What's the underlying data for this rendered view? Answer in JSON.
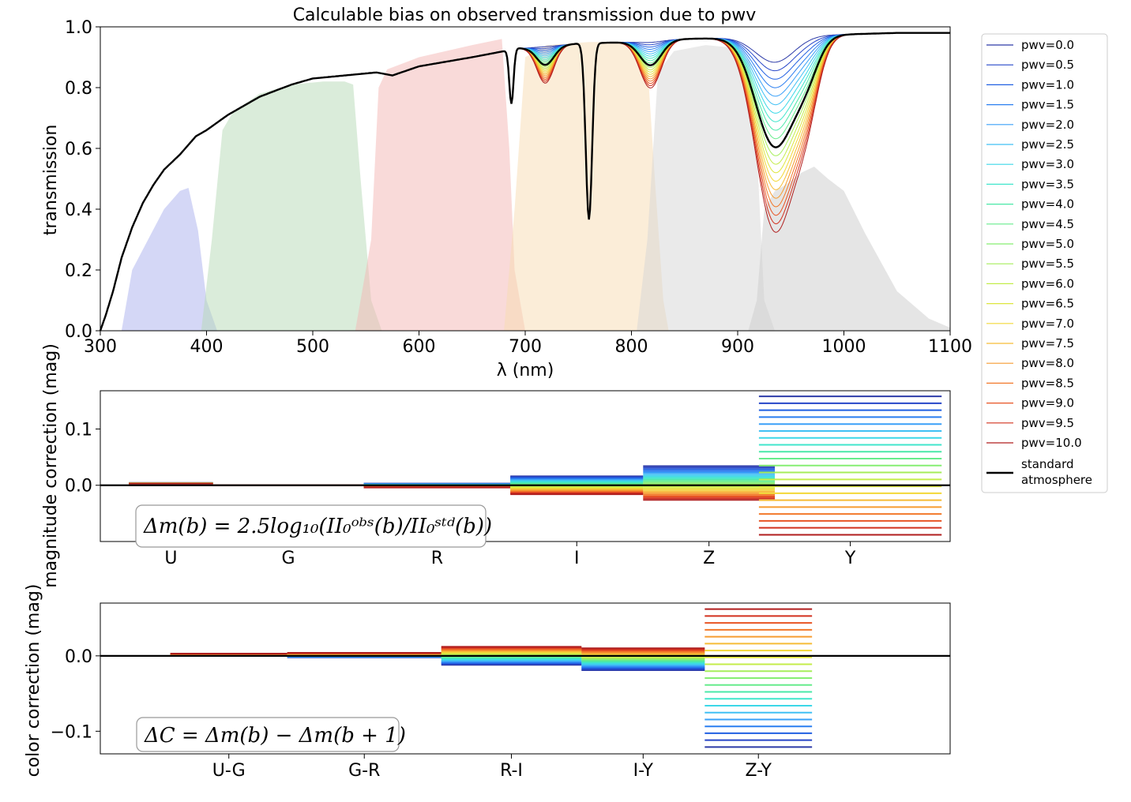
{
  "chart_data": [
    {
      "type": "line",
      "title": "Calculable bias on observed transmission due to pwv",
      "xlabel": "λ (nm)",
      "ylabel": "transmission",
      "xlim": [
        300,
        1100
      ],
      "ylim": [
        0.0,
        1.0
      ],
      "xticks": [
        "300",
        "400",
        "500",
        "600",
        "700",
        "800",
        "900",
        "1000",
        "1100"
      ],
      "yticks": [
        "0.0",
        "0.2",
        "0.4",
        "0.6",
        "0.8",
        "1.0"
      ],
      "grid": false,
      "legend_placement": "outside-right",
      "filters": [
        {
          "name": "U",
          "color": "#aab0ee",
          "x": [
            320,
            330,
            345,
            360,
            375,
            383,
            392,
            400,
            410
          ],
          "y": [
            0.0,
            0.2,
            0.3,
            0.4,
            0.46,
            0.47,
            0.33,
            0.1,
            0.0
          ]
        },
        {
          "name": "G",
          "color": "#b5d9b5",
          "x": [
            395,
            405,
            415,
            425,
            450,
            480,
            510,
            530,
            538,
            545,
            555,
            565
          ],
          "y": [
            0.0,
            0.3,
            0.66,
            0.72,
            0.78,
            0.81,
            0.82,
            0.82,
            0.81,
            0.5,
            0.1,
            0.0
          ]
        },
        {
          "name": "R",
          "color": "#f4b6b4",
          "x": [
            540,
            555,
            562,
            570,
            600,
            650,
            678,
            685,
            690,
            700
          ],
          "y": [
            0.0,
            0.3,
            0.8,
            0.86,
            0.9,
            0.94,
            0.96,
            0.6,
            0.2,
            0.0
          ]
        },
        {
          "name": "I",
          "color": "#f8dcb2",
          "x": [
            680,
            690,
            700,
            720,
            760,
            800,
            815,
            822,
            830,
            835
          ],
          "y": [
            0.0,
            0.4,
            0.9,
            0.94,
            0.95,
            0.95,
            0.88,
            0.5,
            0.1,
            0.0
          ]
        },
        {
          "name": "Z",
          "color": "#d6d6d6",
          "x": [
            805,
            815,
            825,
            840,
            870,
            900,
            912,
            918,
            925,
            935
          ],
          "y": [
            0.0,
            0.3,
            0.85,
            0.92,
            0.94,
            0.93,
            0.88,
            0.6,
            0.1,
            0.0
          ]
        },
        {
          "name": "Y",
          "color": "#cccccc",
          "x": [
            910,
            918,
            925,
            935,
            945,
            960,
            972,
            985,
            1000,
            1020,
            1050,
            1080,
            1100
          ],
          "y": [
            0.0,
            0.1,
            0.4,
            0.46,
            0.48,
            0.52,
            0.54,
            0.5,
            0.46,
            0.32,
            0.13,
            0.04,
            0.01
          ]
        }
      ],
      "absorption_bands": [
        {
          "center": 687,
          "width": 2,
          "depth_std": 0.18,
          "depth_per_pwv": 0.0
        },
        {
          "center": 719,
          "width": 8,
          "depth_std": 0.06,
          "depth_per_pwv": 0.012
        },
        {
          "center": 760,
          "width": 3,
          "depth_std": 0.58,
          "depth_per_pwv": 0.0
        },
        {
          "center": 818,
          "width": 10,
          "depth_std": 0.08,
          "depth_per_pwv": 0.015
        },
        {
          "center": 935,
          "width": 18,
          "depth_std": 0.36,
          "depth_per_pwv": 0.055
        },
        {
          "center": 965,
          "width": 12,
          "depth_std": 0.1,
          "depth_per_pwv": 0.02
        }
      ],
      "series": [
        {
          "name": "pwv=0.0",
          "pwv": 0.0,
          "color": "#2d3ba8"
        },
        {
          "name": "pwv=0.5",
          "pwv": 0.5,
          "color": "#2746c8"
        },
        {
          "name": "pwv=1.0",
          "pwv": 1.0,
          "color": "#2160e2"
        },
        {
          "name": "pwv=1.5",
          "pwv": 1.5,
          "color": "#2a7ef0"
        },
        {
          "name": "pwv=2.0",
          "pwv": 2.0,
          "color": "#3aa0f8"
        },
        {
          "name": "pwv=2.5",
          "pwv": 2.5,
          "color": "#40c0f4"
        },
        {
          "name": "pwv=3.0",
          "pwv": 3.0,
          "color": "#3cd8e8"
        },
        {
          "name": "pwv=3.5",
          "pwv": 3.5,
          "color": "#40e6cc"
        },
        {
          "name": "pwv=4.0",
          "pwv": 4.0,
          "color": "#4ae8a8"
        },
        {
          "name": "pwv=4.5",
          "pwv": 4.5,
          "color": "#66ec8c"
        },
        {
          "name": "pwv=5.0",
          "pwv": 5.0,
          "color": "#86ee72"
        },
        {
          "name": "pwv=5.5",
          "pwv": 5.5,
          "color": "#a6ee5a"
        },
        {
          "name": "pwv=6.0",
          "pwv": 6.0,
          "color": "#c4ec4a"
        },
        {
          "name": "pwv=6.5",
          "pwv": 6.5,
          "color": "#dee63e"
        },
        {
          "name": "pwv=7.0",
          "pwv": 7.0,
          "color": "#f2d838"
        },
        {
          "name": "pwv=7.5",
          "pwv": 7.5,
          "color": "#f6bc36"
        },
        {
          "name": "pwv=8.0",
          "pwv": 8.0,
          "color": "#f69c30"
        },
        {
          "name": "pwv=8.5",
          "pwv": 8.5,
          "color": "#f2782a"
        },
        {
          "name": "pwv=9.0",
          "pwv": 9.0,
          "color": "#e85424"
        },
        {
          "name": "pwv=9.5",
          "pwv": 9.5,
          "color": "#d2301e"
        },
        {
          "name": "pwv=10.0",
          "pwv": 10.0,
          "color": "#b01e1e"
        }
      ],
      "standard": {
        "name": "standard\n atmosphere",
        "color": "#000000"
      },
      "standard_curve": {
        "x": [
          300,
          305,
          312,
          320,
          330,
          340,
          350,
          360,
          375,
          390,
          400,
          420,
          450,
          480,
          500,
          530,
          560,
          575,
          600,
          650,
          680,
          690,
          700,
          720,
          750,
          800,
          850,
          900,
          950,
          1000,
          1050,
          1100
        ],
        "y": [
          0.0,
          0.05,
          0.13,
          0.24,
          0.34,
          0.42,
          0.48,
          0.53,
          0.58,
          0.64,
          0.66,
          0.71,
          0.77,
          0.81,
          0.83,
          0.84,
          0.85,
          0.84,
          0.87,
          0.9,
          0.92,
          0.93,
          0.93,
          0.935,
          0.945,
          0.95,
          0.96,
          0.965,
          0.97,
          0.975,
          0.98,
          0.98
        ]
      }
    },
    {
      "type": "bar",
      "ylabel": "magnitude correction (mag)",
      "ylim": [
        -0.1,
        0.168
      ],
      "yticks": [
        "0.0",
        "0.1"
      ],
      "categories": [
        "U",
        "G",
        "R",
        "I",
        "Z",
        "Y"
      ],
      "annotation": "Δm(b) = 2.5log₁₀(II₀ᵒᵇˢ(b)/II₀ˢᵗᵈ(b))",
      "grid": false,
      "segments": [
        {
          "band": "U",
          "x": [
            327,
            406
          ],
          "min": 0.003,
          "max": 0.004
        },
        {
          "band": "G",
          "x": [
            406,
            548
          ],
          "min": 0.0,
          "max": 0.0
        },
        {
          "band": "R",
          "x": [
            548,
            686
          ],
          "min": -0.004,
          "max": 0.003
        },
        {
          "band": "I",
          "x": [
            686,
            811
          ],
          "min": -0.016,
          "max": 0.016
        },
        {
          "band": "Z",
          "x": [
            811,
            935
          ],
          "min": -0.026,
          "max": 0.034
        },
        {
          "band": "Y",
          "x": [
            920,
            1092
          ],
          "min": -0.088,
          "max": 0.158
        }
      ]
    },
    {
      "type": "bar",
      "ylabel": "color correction (mag)",
      "ylim": [
        -0.13,
        0.07
      ],
      "yticks": [
        "0.0",
        "−0.1"
      ],
      "categories": [
        "U-G",
        "G-R",
        "R-I",
        "I-Y",
        "Z-Y"
      ],
      "annotation": "ΔC = Δm(b) − Δm(b + 1)",
      "grid": false,
      "segments": [
        {
          "band": "U-G",
          "x": [
            366,
            476
          ],
          "min": 0.0,
          "max": 0.003
        },
        {
          "band": "G-R",
          "x": [
            476,
            621
          ],
          "min": -0.002,
          "max": 0.004
        },
        {
          "band": "R-I",
          "x": [
            621,
            753
          ],
          "min": -0.012,
          "max": 0.012
        },
        {
          "band": "I-Y",
          "x": [
            753,
            869
          ],
          "min": -0.019,
          "max": 0.01
        },
        {
          "band": "Z-Y",
          "x": [
            869,
            970
          ],
          "min": -0.121,
          "max": 0.062
        }
      ]
    }
  ]
}
